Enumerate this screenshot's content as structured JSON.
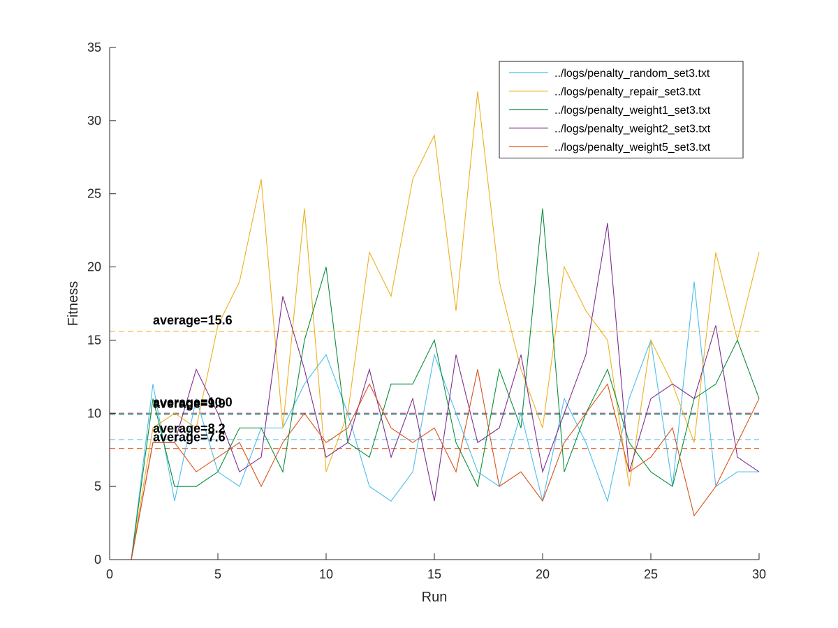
{
  "chart_data": {
    "type": "line",
    "xlabel": "Run",
    "ylabel": "Fitness",
    "xlim": [
      0,
      30
    ],
    "ylim": [
      0,
      35
    ],
    "xticks": [
      0,
      5,
      10,
      15,
      20,
      25,
      30
    ],
    "yticks": [
      0,
      5,
      10,
      15,
      20,
      25,
      30,
      35
    ],
    "grid": false,
    "legend_position": "top-right",
    "x": [
      1,
      2,
      3,
      4,
      5,
      6,
      7,
      8,
      9,
      10,
      11,
      12,
      13,
      14,
      15,
      16,
      17,
      18,
      19,
      20,
      21,
      22,
      23,
      24,
      25,
      26,
      27,
      28,
      29,
      30
    ],
    "series": [
      {
        "name": "../logs/penalty_random_set3.txt",
        "color": "#4DBEEE",
        "values": [
          0,
          12,
          4,
          11,
          6,
          5,
          9,
          9,
          12,
          14,
          10,
          5,
          4,
          6,
          14,
          10,
          6,
          5,
          10,
          4,
          11,
          8,
          4,
          11,
          15,
          5,
          19,
          5,
          6,
          6
        ],
        "average": 8.2,
        "average_label": "average=8.2"
      },
      {
        "name": "../logs/penalty_repair_set3.txt",
        "color": "#EDB120",
        "values": [
          0,
          9,
          10,
          9,
          16,
          19,
          26,
          9,
          24,
          6,
          10,
          21,
          18,
          26,
          29,
          17,
          32,
          19,
          13,
          9,
          20,
          17,
          15,
          5,
          15,
          12,
          8,
          21,
          15,
          21
        ],
        "average": 15.6,
        "average_label": "average=15.6"
      },
      {
        "name": "../logs/penalty_weight1_set3.txt",
        "color": "#0B8F3B",
        "values": [
          0,
          11,
          5,
          5,
          6,
          9,
          9,
          6,
          15,
          20,
          8,
          7,
          12,
          12,
          15,
          8,
          5,
          13,
          9,
          24,
          6,
          10,
          13,
          8,
          6,
          5,
          11,
          12,
          15,
          11
        ],
        "average": 9.9,
        "average_label": "average=9.9"
      },
      {
        "name": "../logs/penalty_weight2_set3.txt",
        "color": "#7E2F8E",
        "values": [
          0,
          8,
          8,
          13,
          10,
          6,
          7,
          18,
          13,
          7,
          8,
          13,
          7,
          11,
          4,
          14,
          8,
          9,
          14,
          6,
          10,
          14,
          23,
          6,
          11,
          12,
          11,
          16,
          7,
          6
        ],
        "average": 10.0,
        "average_label": "average=10.0"
      },
      {
        "name": "../logs/penalty_weight5_set3.txt",
        "color": "#D95319",
        "values": [
          0,
          8,
          8,
          6,
          7,
          8,
          5,
          8,
          10,
          8,
          9,
          12,
          9,
          8,
          9,
          6,
          13,
          5,
          6,
          4,
          8,
          10,
          12,
          6,
          7,
          9,
          3,
          5,
          8,
          11
        ],
        "average": 7.6,
        "average_label": "average=7.6"
      }
    ]
  }
}
